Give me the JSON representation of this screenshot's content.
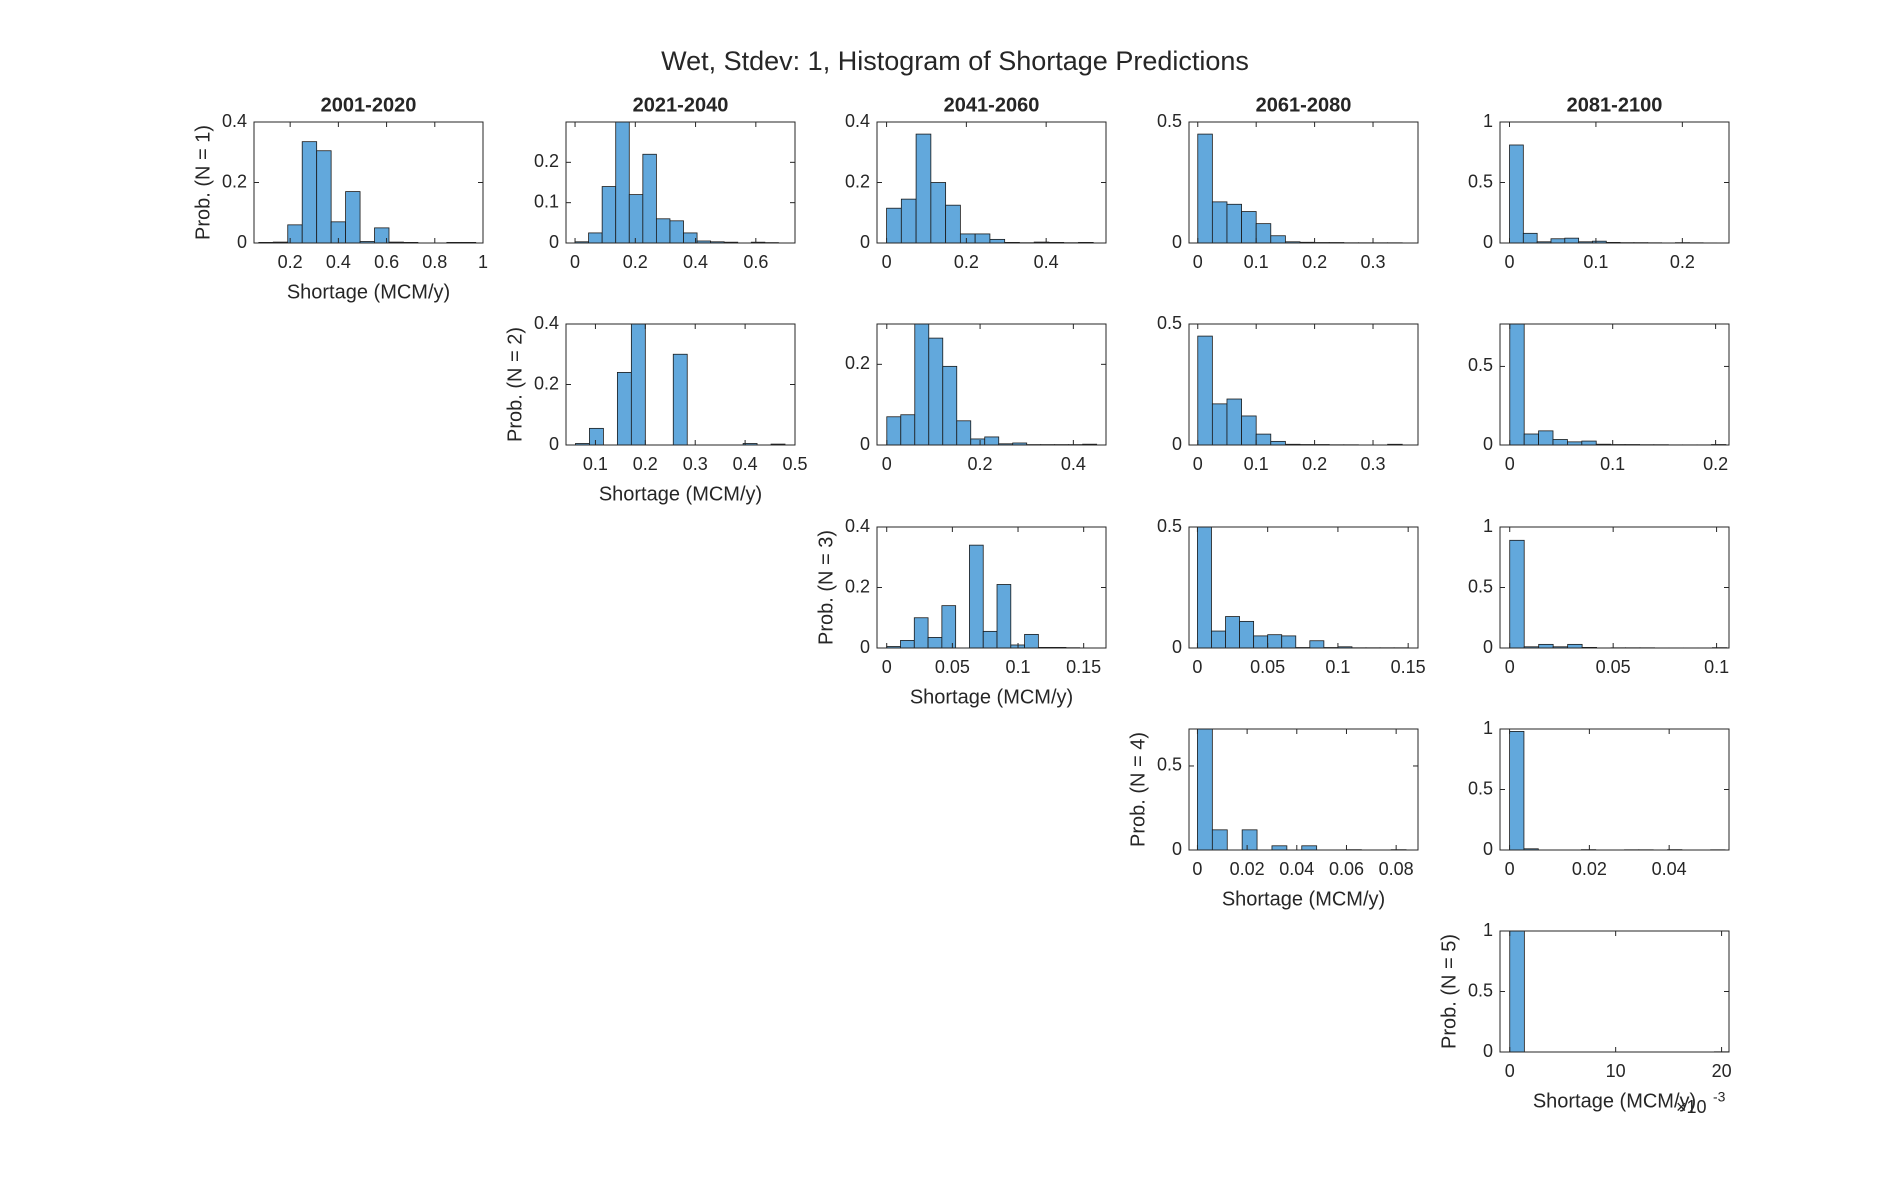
{
  "title": "Wet, Stdev: 1, Histogram of Shortage Predictions",
  "x_multiplier": "×10",
  "x_multiplier_exponent": "-3",
  "chart_data": [
    {
      "type": "histogram",
      "title": "2001-2020",
      "xlabel": "Shortage (MCM/y)",
      "ylabel": "Prob. (N = 1)",
      "color": "#62a8dc",
      "bins": [
        0.07,
        0.13,
        0.19,
        0.25,
        0.31,
        0.37,
        0.43,
        0.49,
        0.55,
        0.61,
        0.67,
        0.73,
        0.79,
        0.85,
        0.91,
        0.97
      ],
      "values": [
        0.002,
        0.003,
        0.06,
        0.335,
        0.305,
        0.07,
        0.17,
        0.005,
        0.05,
        0.003,
        0.002,
        0,
        0,
        0.002,
        0.002
      ],
      "xlim": [
        0.05,
        1
      ],
      "xticks": [
        0.2,
        0.4,
        0.6,
        0.8,
        1
      ],
      "ylim": [
        0,
        0.4
      ],
      "yticks": [
        0,
        0.2,
        0.4
      ]
    },
    {
      "type": "histogram",
      "title": "2021-2040",
      "color": "#62a8dc",
      "bins": [
        0,
        0.045,
        0.09,
        0.135,
        0.18,
        0.225,
        0.27,
        0.315,
        0.36,
        0.405,
        0.45,
        0.495,
        0.54,
        0.585,
        0.63,
        0.675,
        0.72
      ],
      "values": [
        0.003,
        0.025,
        0.14,
        0.3,
        0.12,
        0.22,
        0.06,
        0.055,
        0.025,
        0.005,
        0.003,
        0.002,
        0,
        0.002,
        0.001,
        0
      ],
      "xlim": [
        -0.03,
        0.73
      ],
      "xticks": [
        0,
        0.2,
        0.4,
        0.6
      ],
      "ylim": [
        0,
        0.3
      ],
      "yticks": [
        0,
        0.1,
        0.2
      ]
    },
    {
      "type": "histogram",
      "title": "2041-2060",
      "color": "#62a8dc",
      "bins": [
        0,
        0.037,
        0.074,
        0.111,
        0.148,
        0.185,
        0.222,
        0.259,
        0.296,
        0.333,
        0.37,
        0.407,
        0.444,
        0.481,
        0.518
      ],
      "values": [
        0.115,
        0.145,
        0.36,
        0.2,
        0.125,
        0.03,
        0.03,
        0.012,
        0.002,
        0.001,
        0.003,
        0.002,
        0.001,
        0.002
      ],
      "xlim": [
        -0.024,
        0.55
      ],
      "xticks": [
        0,
        0.2,
        0.4
      ],
      "ylim": [
        0,
        0.4
      ],
      "yticks": [
        0,
        0.2,
        0.4
      ]
    },
    {
      "type": "histogram",
      "title": "2061-2080",
      "color": "#62a8dc",
      "bins": [
        0,
        0.025,
        0.05,
        0.075,
        0.1,
        0.125,
        0.15,
        0.175,
        0.2,
        0.225,
        0.25,
        0.275,
        0.3,
        0.325,
        0.35
      ],
      "values": [
        0.45,
        0.17,
        0.16,
        0.13,
        0.08,
        0.03,
        0.005,
        0.003,
        0.002,
        0.002,
        0.001,
        0.001,
        0.001,
        0.001
      ],
      "xlim": [
        -0.015,
        0.377
      ],
      "xticks": [
        0,
        0.1,
        0.2,
        0.3
      ],
      "ylim": [
        0,
        0.5
      ],
      "yticks": [
        0,
        0.5
      ]
    },
    {
      "type": "histogram",
      "title": "2081-2100",
      "color": "#62a8dc",
      "bins": [
        0,
        0.016,
        0.032,
        0.048,
        0.064,
        0.08,
        0.096,
        0.112,
        0.128,
        0.144,
        0.16,
        0.176,
        0.192,
        0.208,
        0.224,
        0.24
      ],
      "values": [
        0.81,
        0.08,
        0.01,
        0.035,
        0.04,
        0.01,
        0.015,
        0.005,
        0.003,
        0.003,
        0.002,
        0.001,
        0.003,
        0.002,
        0.001
      ],
      "xlim": [
        -0.011,
        0.254
      ],
      "xticks": [
        0,
        0.1,
        0.2
      ],
      "ylim": [
        0,
        1
      ],
      "yticks": [
        0,
        0.5,
        1
      ]
    },
    {
      "type": "histogram",
      "xlabel": "Shortage (MCM/y)",
      "ylabel": "Prob. (N = 2)",
      "color": "#62a8dc",
      "bins": [
        0.06,
        0.088,
        0.116,
        0.144,
        0.172,
        0.2,
        0.228,
        0.256,
        0.284,
        0.312,
        0.34,
        0.368,
        0.396,
        0.424,
        0.452,
        0.48
      ],
      "values": [
        0.005,
        0.055,
        0,
        0.24,
        0.4,
        0,
        0,
        0.3,
        0,
        0,
        0,
        0,
        0.005,
        0,
        0.003
      ],
      "xlim": [
        0.041,
        0.5
      ],
      "xticks": [
        0.1,
        0.2,
        0.3,
        0.4,
        0.5
      ],
      "ylim": [
        0,
        0.4
      ],
      "yticks": [
        0,
        0.2,
        0.4
      ]
    },
    {
      "type": "histogram",
      "color": "#62a8dc",
      "bins": [
        0,
        0.03,
        0.06,
        0.09,
        0.12,
        0.15,
        0.18,
        0.21,
        0.24,
        0.27,
        0.3,
        0.33,
        0.36,
        0.39,
        0.42,
        0.45
      ],
      "values": [
        0.07,
        0.075,
        0.3,
        0.265,
        0.195,
        0.06,
        0.015,
        0.02,
        0.003,
        0.005,
        0.001,
        0.001,
        0.001,
        0.001,
        0.002
      ],
      "xlim": [
        -0.021,
        0.47
      ],
      "xticks": [
        0,
        0.2,
        0.4
      ],
      "ylim": [
        0,
        0.3
      ],
      "yticks": [
        0,
        0.2
      ]
    },
    {
      "type": "histogram",
      "color": "#62a8dc",
      "bins": [
        0,
        0.025,
        0.05,
        0.075,
        0.1,
        0.125,
        0.15,
        0.175,
        0.2,
        0.225,
        0.25,
        0.275,
        0.3,
        0.325,
        0.35
      ],
      "values": [
        0.45,
        0.17,
        0.19,
        0.12,
        0.045,
        0.015,
        0.003,
        0.002,
        0.002,
        0.001,
        0.001,
        0,
        0,
        0.003
      ],
      "xlim": [
        -0.015,
        0.377
      ],
      "xticks": [
        0,
        0.1,
        0.2,
        0.3
      ],
      "ylim": [
        0,
        0.5
      ],
      "yticks": [
        0,
        0.5
      ]
    },
    {
      "type": "histogram",
      "color": "#62a8dc",
      "bins": [
        0,
        0.014,
        0.028,
        0.042,
        0.056,
        0.07,
        0.084,
        0.098,
        0.112,
        0.126,
        0.14,
        0.154,
        0.168,
        0.182,
        0.196,
        0.21
      ],
      "values": [
        0.77,
        0.07,
        0.09,
        0.035,
        0.02,
        0.025,
        0.005,
        0.003,
        0.003,
        0.002,
        0.002,
        0.001,
        0.001,
        0.001,
        0.003
      ],
      "xlim": [
        -0.0095,
        0.213
      ],
      "xticks": [
        0,
        0.1,
        0.2
      ],
      "ylim": [
        0,
        0.77
      ],
      "yticks": [
        0,
        0.5
      ]
    },
    {
      "type": "histogram",
      "xlabel": "Shortage (MCM/y)",
      "ylabel": "Prob. (N = 3)",
      "color": "#62a8dc",
      "bins": [
        0,
        0.0105,
        0.021,
        0.0315,
        0.042,
        0.0525,
        0.063,
        0.0735,
        0.084,
        0.0945,
        0.105,
        0.1155,
        0.126,
        0.1365,
        0.147,
        0.1575
      ],
      "values": [
        0.005,
        0.025,
        0.1,
        0.035,
        0.14,
        0,
        0.34,
        0.055,
        0.21,
        0.01,
        0.045,
        0.002,
        0.002,
        0.001,
        0
      ],
      "xlim": [
        -0.0074,
        0.167
      ],
      "xticks": [
        0,
        0.05,
        0.1,
        0.15
      ],
      "ylim": [
        0,
        0.4
      ],
      "yticks": [
        0,
        0.2,
        0.4
      ]
    },
    {
      "type": "histogram",
      "color": "#62a8dc",
      "bins": [
        0,
        0.01,
        0.02,
        0.03,
        0.04,
        0.05,
        0.06,
        0.07,
        0.08,
        0.09,
        0.1,
        0.11,
        0.12,
        0.13,
        0.14,
        0.15
      ],
      "values": [
        0.5,
        0.07,
        0.13,
        0.11,
        0.05,
        0.055,
        0.05,
        0.002,
        0.03,
        0.002,
        0.005,
        0.001,
        0.001,
        0.001,
        0.001
      ],
      "xlim": [
        -0.006,
        0.157
      ],
      "xticks": [
        0,
        0.05,
        0.1,
        0.15
      ],
      "ylim": [
        0,
        0.5
      ],
      "yticks": [
        0,
        0.5
      ]
    },
    {
      "type": "histogram",
      "color": "#62a8dc",
      "bins": [
        0,
        0.007,
        0.014,
        0.021,
        0.028,
        0.035,
        0.042,
        0.049,
        0.056,
        0.063,
        0.07,
        0.077,
        0.084,
        0.091,
        0.098,
        0.105
      ],
      "values": [
        0.89,
        0.01,
        0.03,
        0.01,
        0.03,
        0.005,
        0.001,
        0.002,
        0.002,
        0.002,
        0.001,
        0.001,
        0.001,
        0.001,
        0.003
      ],
      "xlim": [
        -0.0047,
        0.106
      ],
      "xticks": [
        0,
        0.05,
        0.1
      ],
      "ylim": [
        0,
        1
      ],
      "yticks": [
        0,
        0.5,
        1
      ]
    },
    {
      "type": "histogram",
      "xlabel": "Shortage (MCM/y)",
      "ylabel": "Prob. (N = 4)",
      "color": "#62a8dc",
      "bins": [
        0,
        0.006,
        0.012,
        0.018,
        0.024,
        0.03,
        0.036,
        0.042,
        0.048,
        0.054,
        0.06,
        0.066,
        0.072,
        0.078,
        0.084
      ],
      "values": [
        0.72,
        0.12,
        0,
        0.12,
        0,
        0.025,
        0,
        0.025,
        0,
        0,
        0.002,
        0,
        0,
        0.002
      ],
      "xlim": [
        -0.0034,
        0.0888
      ],
      "xticks": [
        0,
        0.02,
        0.04,
        0.06,
        0.08
      ],
      "ylim": [
        0,
        0.72
      ],
      "yticks": [
        0,
        0.5
      ]
    },
    {
      "type": "histogram",
      "color": "#62a8dc",
      "bins": [
        0,
        0.0036,
        0.0072,
        0.0108,
        0.0144,
        0.018,
        0.0216,
        0.0252,
        0.0288,
        0.0324,
        0.036,
        0.0396,
        0.0432,
        0.0468,
        0.0504,
        0.054
      ],
      "values": [
        0.98,
        0.01,
        0,
        0,
        0,
        0.003,
        0,
        0,
        0.002,
        0.002,
        0,
        0.003,
        0,
        0,
        0.002
      ],
      "xlim": [
        -0.0024,
        0.055
      ],
      "xticks": [
        0,
        0.02,
        0.04
      ],
      "ylim": [
        0,
        1
      ],
      "yticks": [
        0,
        0.5,
        1
      ]
    },
    {
      "type": "histogram",
      "xlabel": "Shortage (MCM/y)",
      "ylabel": "Prob. (N = 5)",
      "color": "#62a8dc",
      "bins": [
        0,
        1.38,
        2.76,
        4.14,
        5.52,
        6.9,
        8.28,
        9.66,
        11.04,
        12.42,
        13.8,
        15.18,
        16.56,
        17.94,
        19.32,
        20.7
      ],
      "values": [
        1,
        0,
        0,
        0,
        0,
        0,
        0,
        0,
        0,
        0,
        0,
        0,
        0,
        0,
        0.002
      ],
      "xlim": [
        -0.92,
        20.7
      ],
      "xticks": [
        0,
        10,
        20
      ],
      "ylim": [
        0,
        1
      ],
      "yticks": [
        0,
        0.5,
        1
      ]
    }
  ]
}
